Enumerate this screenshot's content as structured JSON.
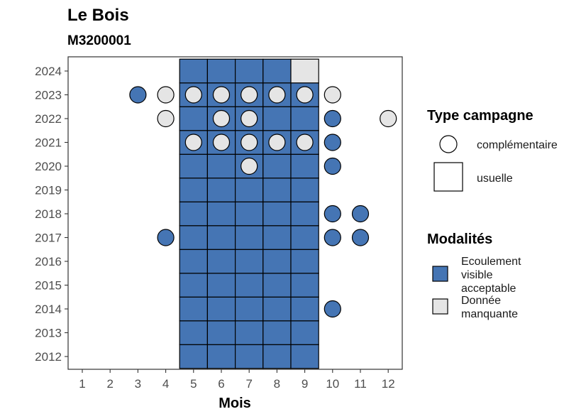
{
  "chart_data": {
    "type": "heatmap",
    "title": "Le Bois",
    "subtitle": "M3200001",
    "xlabel": "Mois",
    "ylabel": "",
    "x_ticks": [
      "1",
      "2",
      "3",
      "4",
      "5",
      "6",
      "7",
      "8",
      "9",
      "10",
      "11",
      "12"
    ],
    "y_ticks": [
      "2012",
      "2013",
      "2014",
      "2015",
      "2016",
      "2017",
      "2018",
      "2019",
      "2020",
      "2021",
      "2022",
      "2023",
      "2024"
    ],
    "xlim": [
      1,
      12
    ],
    "ylim": [
      2012,
      2024
    ],
    "legend_type_title": "Type campagne",
    "legend_type_items": [
      {
        "shape": "circle",
        "label": "complémentaire"
      },
      {
        "shape": "square",
        "label": "usuelle"
      }
    ],
    "legend_mod_title": "Modalités",
    "legend_mod_items": [
      {
        "lines": [
          "Ecoulement",
          "visible",
          "acceptable"
        ],
        "color": "#4575b4"
      },
      {
        "lines": [
          "Donnée",
          "manquante"
        ],
        "color": "#e5e5e5"
      }
    ],
    "colors": {
      "Ecoulement visible acceptable": "#4575b4",
      "Donnée manquante": "#e5e5e5"
    },
    "usuelle": [
      {
        "month": 5,
        "years": [
          2012,
          2013,
          2014,
          2015,
          2016,
          2017,
          2018,
          2019,
          2020,
          2021,
          2022,
          2023,
          2024
        ],
        "modalite": "Ecoulement visible acceptable"
      },
      {
        "month": 6,
        "years": [
          2012,
          2013,
          2014,
          2015,
          2016,
          2017,
          2018,
          2019,
          2020,
          2021,
          2022,
          2023,
          2024
        ],
        "modalite": "Ecoulement visible acceptable"
      },
      {
        "month": 7,
        "years": [
          2012,
          2013,
          2014,
          2015,
          2016,
          2017,
          2018,
          2019,
          2020,
          2021,
          2022,
          2023,
          2024
        ],
        "modalite": "Ecoulement visible acceptable"
      },
      {
        "month": 8,
        "years": [
          2012,
          2013,
          2014,
          2015,
          2016,
          2017,
          2018,
          2019,
          2020,
          2021,
          2022,
          2023,
          2024
        ],
        "modalite": "Ecoulement visible acceptable"
      },
      {
        "month": 9,
        "years": [
          2012,
          2013,
          2014,
          2015,
          2016,
          2017,
          2018,
          2019,
          2020,
          2021,
          2022,
          2023
        ],
        "modalite": "Ecoulement visible acceptable"
      },
      {
        "month": 9,
        "years": [
          2024
        ],
        "modalite": "Donnée manquante"
      }
    ],
    "complementaire": [
      {
        "month": 3,
        "year": 2023,
        "modalite": "Ecoulement visible acceptable"
      },
      {
        "month": 4,
        "year": 2023,
        "modalite": "Donnée manquante"
      },
      {
        "month": 5,
        "year": 2023,
        "modalite": "Donnée manquante"
      },
      {
        "month": 6,
        "year": 2023,
        "modalite": "Donnée manquante"
      },
      {
        "month": 7,
        "year": 2023,
        "modalite": "Donnée manquante"
      },
      {
        "month": 8,
        "year": 2023,
        "modalite": "Donnée manquante"
      },
      {
        "month": 9,
        "year": 2023,
        "modalite": "Donnée manquante"
      },
      {
        "month": 10,
        "year": 2023,
        "modalite": "Donnée manquante"
      },
      {
        "month": 4,
        "year": 2022,
        "modalite": "Donnée manquante"
      },
      {
        "month": 6,
        "year": 2022,
        "modalite": "Donnée manquante"
      },
      {
        "month": 7,
        "year": 2022,
        "modalite": "Donnée manquante"
      },
      {
        "month": 10,
        "year": 2022,
        "modalite": "Ecoulement visible acceptable"
      },
      {
        "month": 12,
        "year": 2022,
        "modalite": "Donnée manquante"
      },
      {
        "month": 5,
        "year": 2021,
        "modalite": "Donnée manquante"
      },
      {
        "month": 6,
        "year": 2021,
        "modalite": "Donnée manquante"
      },
      {
        "month": 7,
        "year": 2021,
        "modalite": "Donnée manquante"
      },
      {
        "month": 8,
        "year": 2021,
        "modalite": "Donnée manquante"
      },
      {
        "month": 9,
        "year": 2021,
        "modalite": "Donnée manquante"
      },
      {
        "month": 10,
        "year": 2021,
        "modalite": "Ecoulement visible acceptable"
      },
      {
        "month": 7,
        "year": 2020,
        "modalite": "Donnée manquante"
      },
      {
        "month": 10,
        "year": 2020,
        "modalite": "Ecoulement visible acceptable"
      },
      {
        "month": 10,
        "year": 2018,
        "modalite": "Ecoulement visible acceptable"
      },
      {
        "month": 11,
        "year": 2018,
        "modalite": "Ecoulement visible acceptable"
      },
      {
        "month": 4,
        "year": 2017,
        "modalite": "Ecoulement visible acceptable"
      },
      {
        "month": 10,
        "year": 2017,
        "modalite": "Ecoulement visible acceptable"
      },
      {
        "month": 11,
        "year": 2017,
        "modalite": "Ecoulement visible acceptable"
      },
      {
        "month": 10,
        "year": 2014,
        "modalite": "Ecoulement visible acceptable"
      }
    ]
  }
}
